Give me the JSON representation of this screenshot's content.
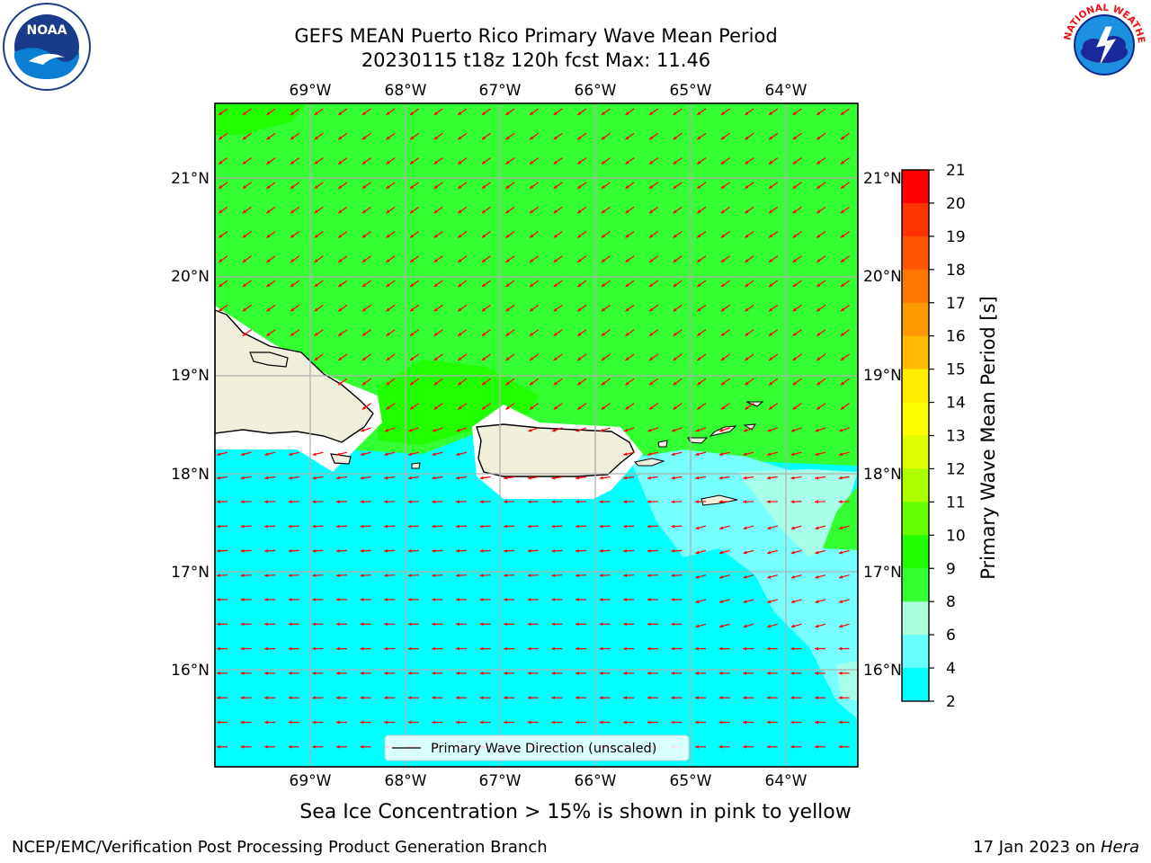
{
  "header": {
    "title_line1": "GEFS MEAN Puerto Rico Primary Wave Mean Period",
    "title_line2": "20230115 t18z 120h fcst   Max: 11.46"
  },
  "logos": {
    "left": {
      "icon": "noaa-logo-icon",
      "text": "NOAA"
    },
    "right": {
      "icon": "nws-logo-icon",
      "text": "NATIONAL WEATHER SERVICE"
    }
  },
  "map": {
    "lon_labels": [
      "69°W",
      "68°W",
      "67°W",
      "66°W",
      "65°W",
      "64°W"
    ],
    "lat_labels": [
      "21°N",
      "20°N",
      "19°N",
      "18°N",
      "17°N",
      "16°N"
    ],
    "legend_label": "Primary Wave Direction (unscaled)",
    "colors": {
      "land": "#f0efdc",
      "green": "#33ff33",
      "bright_green": "#22ff00",
      "cyan": "#00ffff",
      "light_cyan": "#77ffff",
      "pale_cyan": "#a8ffe8",
      "arrow": "#ff0000",
      "grid": "#b0b0b0"
    }
  },
  "colorbar": {
    "label": "Primary Wave Mean Period [s]",
    "ticks": [
      "21",
      "20",
      "19",
      "18",
      "17",
      "16",
      "15",
      "14",
      "13",
      "12",
      "11",
      "10",
      "9",
      "8",
      "6",
      "4",
      "2"
    ],
    "colors": [
      "#ff0000",
      "#ff3300",
      "#ff5500",
      "#ff7700",
      "#ff9900",
      "#ffbb00",
      "#ffee00",
      "#ffff00",
      "#ddff00",
      "#aaff00",
      "#66ff00",
      "#22ff00",
      "#33ff33",
      "#aaffdd",
      "#66ffff",
      "#00ffff",
      "#0088ff",
      "#0000ff"
    ]
  },
  "note": "Sea Ice Concentration > 15% is shown in pink to yellow",
  "footer": {
    "left": "NCEP/EMC/Verification Post Processing Product Generation Branch",
    "right_prefix": "17 Jan 2023 on ",
    "right_host": "Hera"
  }
}
